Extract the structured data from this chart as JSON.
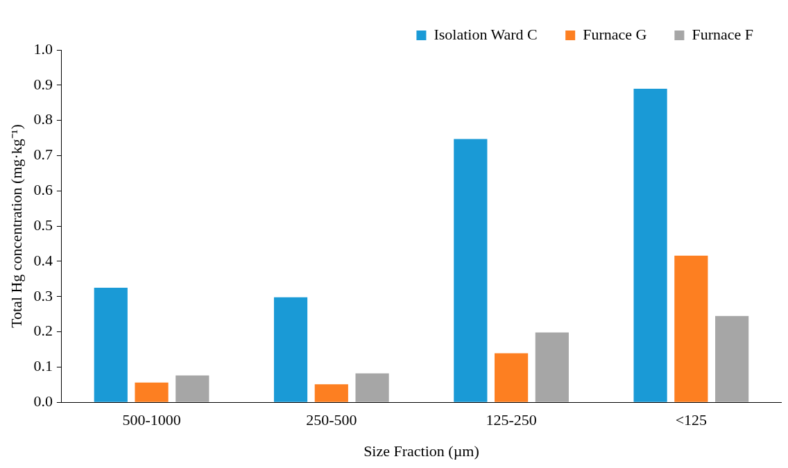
{
  "chart_data": {
    "type": "bar",
    "xlabel": "Size Fraction (µm)",
    "ylabel": "Total Hg concentration (mg·kg⁻¹)",
    "categories": [
      "500-1000",
      "250-500",
      "125-250",
      "<125"
    ],
    "series": [
      {
        "name": "Isolation Ward C",
        "color": "#1a9ad6",
        "values": [
          0.325,
          0.298,
          0.747,
          0.89
        ]
      },
      {
        "name": "Furnace G",
        "color": "#fd7f21",
        "values": [
          0.056,
          0.051,
          0.139,
          0.416
        ]
      },
      {
        "name": "Furnace F",
        "color": "#a6a6a6",
        "values": [
          0.076,
          0.082,
          0.198,
          0.245
        ]
      }
    ],
    "ylim": [
      0,
      1
    ],
    "yticks": [
      {
        "value": 0,
        "label": "0.0"
      },
      {
        "value": 0.1,
        "label": "0.1"
      },
      {
        "value": 0.2,
        "label": "0.2"
      },
      {
        "value": 0.3,
        "label": "0.3"
      },
      {
        "value": 0.4,
        "label": "0.4"
      },
      {
        "value": 0.5,
        "label": "0.5"
      },
      {
        "value": 0.6,
        "label": "0.6"
      },
      {
        "value": 0.7,
        "label": "0.7"
      },
      {
        "value": 0.8,
        "label": "0.8"
      },
      {
        "value": 0.9,
        "label": "0.9"
      },
      {
        "value": 1,
        "label": "1.0"
      }
    ],
    "grid": false,
    "legend": "top right"
  }
}
